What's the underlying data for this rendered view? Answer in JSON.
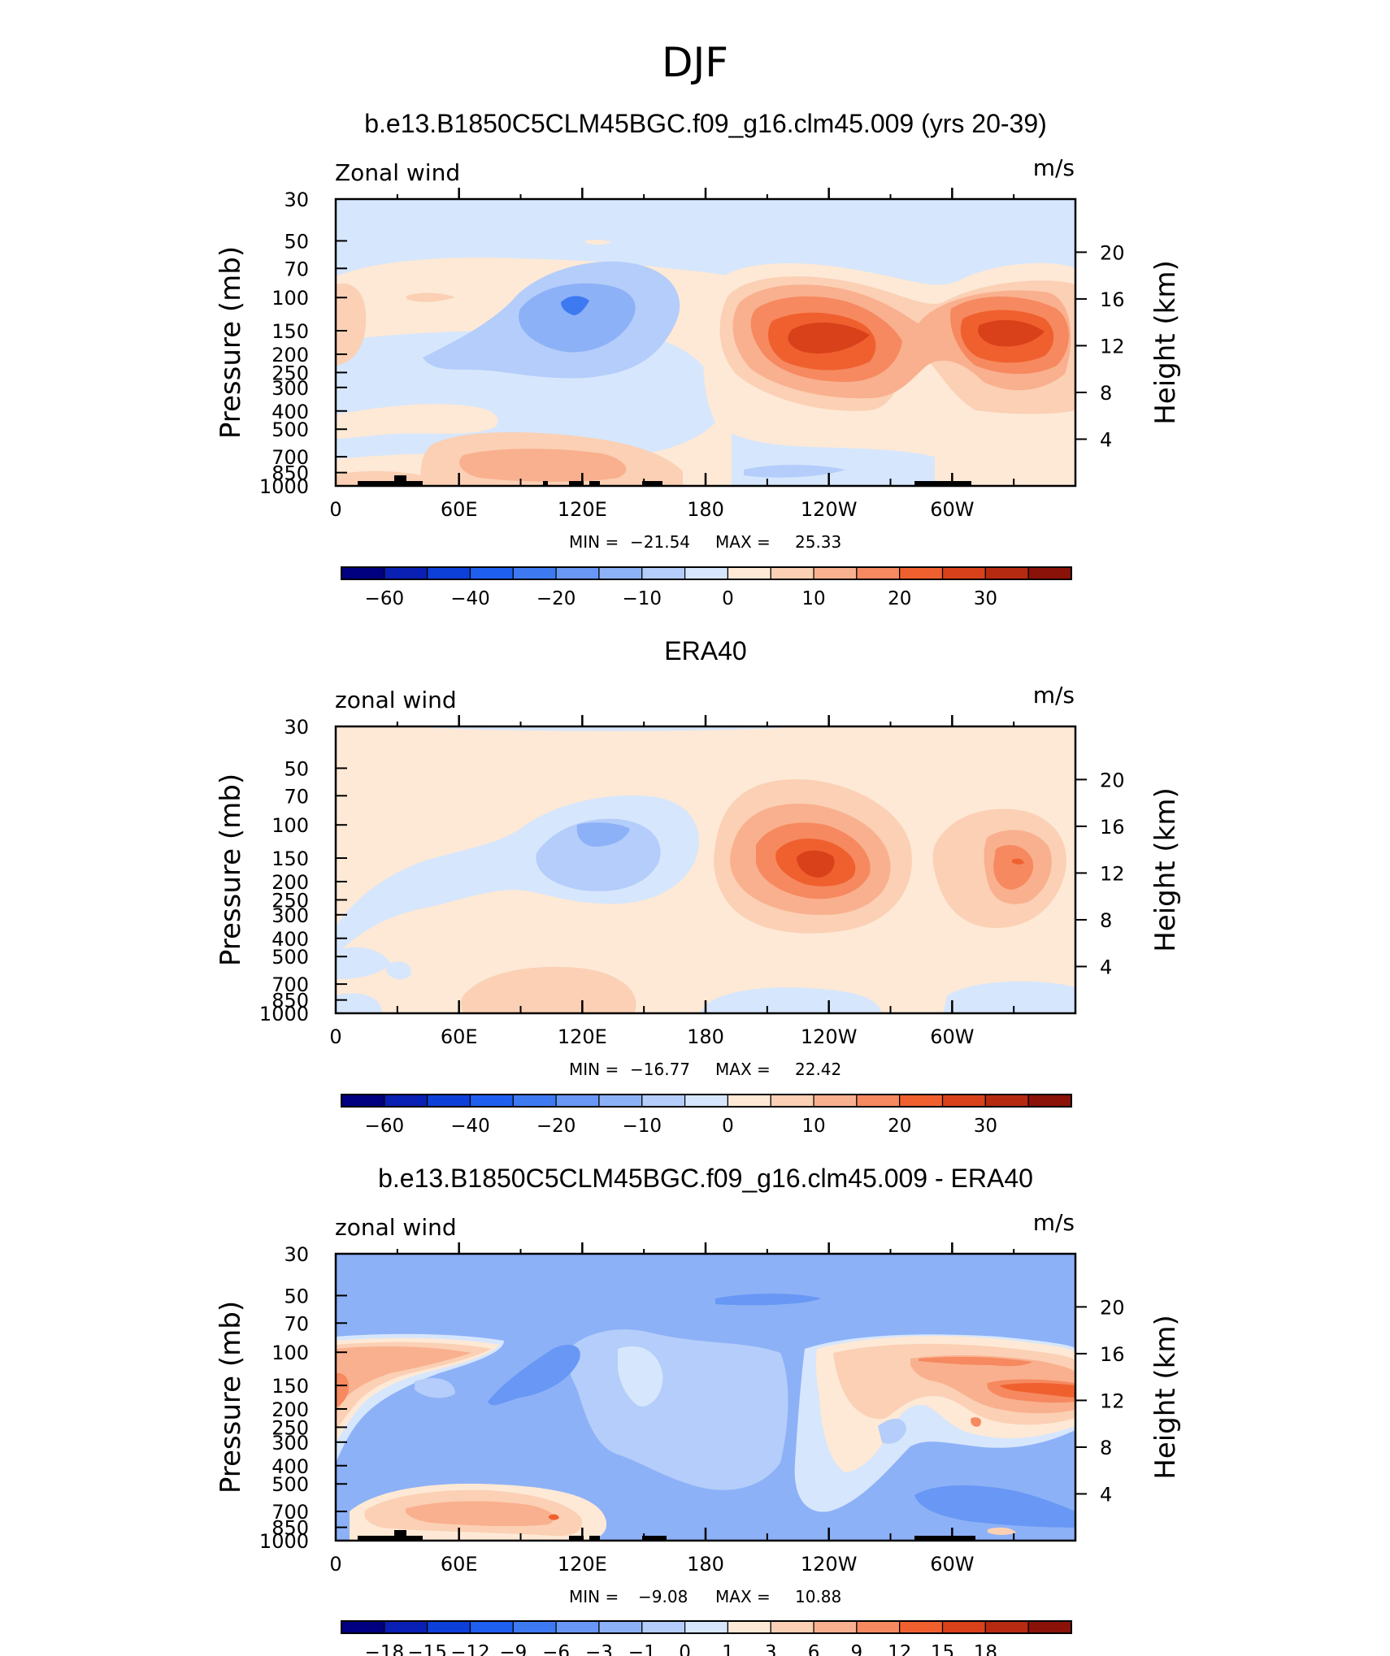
{
  "page_title": "DJF",
  "colors": {
    "model_obs_levels": [
      -70,
      -60,
      -50,
      -40,
      -30,
      -20,
      -15,
      -10,
      -5,
      0,
      5,
      10,
      15,
      20,
      25,
      30,
      35
    ],
    "model_obs_palette": [
      "#000080",
      "#0a1fb3",
      "#0d40d9",
      "#1f5ff0",
      "#3d7af2",
      "#6897f5",
      "#8db1f7",
      "#b4cdfa",
      "#d6e6fc",
      "#fde9d6",
      "#fbd0b4",
      "#f9b08f",
      "#f6895f",
      "#f0602f",
      "#d9411a",
      "#b52a10",
      "#8a1208"
    ],
    "diff_palette": [
      "#000080",
      "#0a1fb3",
      "#0d40d9",
      "#1f5ff0",
      "#3d7af2",
      "#6897f5",
      "#8db1f7",
      "#b4cdfa",
      "#d6e6fc",
      "#fde9d6",
      "#fbd0b4",
      "#f9b08f",
      "#f6895f",
      "#f0602f",
      "#d9411a",
      "#b52a10",
      "#8a1208"
    ]
  },
  "chart_data": [
    {
      "type": "heatmap",
      "title": "b.e13.B1850C5CLM45BGC.f09_g16.clm45.009 (yrs 20-39)",
      "left_label": "Zonal wind",
      "right_label": "m/s",
      "ylabel": "Pressure (mb)",
      "y2label": "Height (km)",
      "x_ticks": [
        "0",
        "60E",
        "120E",
        "180",
        "120W",
        "60W"
      ],
      "y_ticks": [
        "30",
        "50",
        "70",
        "100",
        "150",
        "200",
        "250",
        "300",
        "400",
        "500",
        "700",
        "850",
        "1000"
      ],
      "y2_ticks": [
        "20",
        "16",
        "12",
        "8",
        "4"
      ],
      "min_label": "MIN =",
      "min_value": "−21.54",
      "max_label": "MAX =",
      "max_value": "25.33",
      "colorbar_labels": [
        "−60",
        "−40",
        "−20",
        "−10",
        "0",
        "10",
        "20",
        "30"
      ],
      "features": [
        {
          "lon": 130,
          "p": 125,
          "value": -20
        },
        {
          "lon": 120,
          "p": 190,
          "value": -12
        },
        {
          "lon": 255,
          "p": 150,
          "value": 25
        },
        {
          "lon": 330,
          "p": 150,
          "value": 24
        },
        {
          "lon": 100,
          "p": 750,
          "value": 7
        },
        {
          "lon": 210,
          "p": 750,
          "value": -6
        }
      ]
    },
    {
      "type": "heatmap",
      "title": "ERA40",
      "left_label": "zonal wind",
      "right_label": "m/s",
      "ylabel": "Pressure (mb)",
      "y2label": "Height (km)",
      "x_ticks": [
        "0",
        "60E",
        "120E",
        "180",
        "120W",
        "60W"
      ],
      "y_ticks": [
        "30",
        "50",
        "70",
        "100",
        "150",
        "200",
        "250",
        "300",
        "400",
        "500",
        "700",
        "850",
        "1000"
      ],
      "y2_ticks": [
        "20",
        "16",
        "12",
        "8",
        "4"
      ],
      "min_label": "MIN =",
      "min_value": "−16.77",
      "max_label": "MAX =",
      "max_value": "22.42",
      "colorbar_labels": [
        "−60",
        "−40",
        "−20",
        "−10",
        "0",
        "10",
        "20",
        "30"
      ],
      "features": [
        {
          "lon": 135,
          "p": 140,
          "value": -16
        },
        {
          "lon": 120,
          "p": 210,
          "value": -9
        },
        {
          "lon": 232,
          "p": 155,
          "value": 22
        },
        {
          "lon": 330,
          "p": 160,
          "value": 16
        },
        {
          "lon": 110,
          "p": 800,
          "value": 5
        },
        {
          "lon": 230,
          "p": 850,
          "value": -4
        }
      ]
    },
    {
      "type": "heatmap",
      "title": "b.e13.B1850C5CLM45BGC.f09_g16.clm45.009 - ERA40",
      "left_label": "zonal wind",
      "right_label": "m/s",
      "ylabel": "Pressure (mb)",
      "y2label": "Height (km)",
      "x_ticks": [
        "0",
        "60E",
        "120E",
        "180",
        "120W",
        "60W"
      ],
      "y_ticks": [
        "30",
        "50",
        "70",
        "100",
        "150",
        "200",
        "250",
        "300",
        "400",
        "500",
        "700",
        "850",
        "1000"
      ],
      "y2_ticks": [
        "20",
        "16",
        "12",
        "8",
        "4"
      ],
      "min_label": "MIN =",
      "min_value": "−9.08",
      "max_label": "MAX =",
      "max_value": "10.88",
      "colorbar_labels": [
        "−18",
        "−15",
        "−12",
        "−9",
        "−6",
        "−3",
        "−1",
        "0",
        "1",
        "3",
        "6",
        "9",
        "12",
        "15",
        "18"
      ],
      "features": [
        {
          "lon": 15,
          "p": 140,
          "value": 6
        },
        {
          "lon": 340,
          "p": 150,
          "value": 9
        },
        {
          "lon": 290,
          "p": 140,
          "value": 6
        },
        {
          "lon": 105,
          "p": 120,
          "value": -9
        },
        {
          "lon": 185,
          "p": 50,
          "value": -8
        },
        {
          "lon": 150,
          "p": 300,
          "value": -4
        },
        {
          "lon": 150,
          "p": 140,
          "value": -1
        },
        {
          "lon": 100,
          "p": 750,
          "value": 6
        },
        {
          "lon": 300,
          "p": 800,
          "value": -4
        }
      ]
    }
  ]
}
